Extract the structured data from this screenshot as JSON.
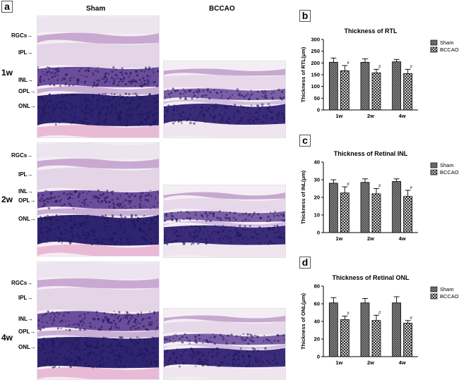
{
  "panels": {
    "a": "a",
    "b": "b",
    "c": "c",
    "d": "d"
  },
  "columns": [
    "Sham",
    "BCCAO"
  ],
  "timepoints": [
    "1w",
    "2w",
    "4w"
  ],
  "layer_labels": {
    "row1": [
      "RGCs",
      "IPL",
      "INL",
      "OPL",
      "ONL"
    ],
    "row2": [
      "RGCs",
      "IPL",
      "INL",
      "OPL",
      "ONL"
    ],
    "row3": [
      "RGCs",
      "IPL",
      "INL",
      "OPL",
      "ONL"
    ]
  },
  "colors": {
    "sham_fill": "#7a7a7a",
    "bccao_fill": "#ffffff",
    "stain_purple": "#3b2a7c",
    "stain_pink": "#e8b9d6"
  },
  "chart_data": [
    {
      "type": "bar",
      "title": "Thickness of RTL",
      "ylabel": "Thickness of RTL(μm)",
      "ylim": [
        0,
        300
      ],
      "yticks": [
        0,
        50,
        100,
        150,
        200,
        250,
        300
      ],
      "categories": [
        "1w",
        "2w",
        "4w"
      ],
      "series": [
        {
          "name": "Sham",
          "values": [
            203,
            203,
            205
          ],
          "errors": [
            18,
            15,
            10
          ]
        },
        {
          "name": "BCCAO",
          "values": [
            167,
            158,
            155
          ],
          "errors": [
            22,
            15,
            18
          ]
        }
      ],
      "significance": [
        "#",
        "#",
        "#"
      ],
      "legend": "right"
    },
    {
      "type": "bar",
      "title": "Thickness of Retinal INL",
      "ylabel": "Thickness of INL(μm)",
      "ylim": [
        0,
        40
      ],
      "yticks": [
        0,
        10,
        20,
        30,
        40
      ],
      "categories": [
        "1w",
        "2w",
        "4w"
      ],
      "series": [
        {
          "name": "Sham",
          "values": [
            28,
            28.5,
            29
          ],
          "errors": [
            2,
            2,
            1.5
          ]
        },
        {
          "name": "BCCAO",
          "values": [
            22.5,
            22,
            20.5
          ],
          "errors": [
            3.5,
            3,
            3.5
          ]
        }
      ],
      "significance": [
        "#",
        "#",
        "#"
      ],
      "legend": "right"
    },
    {
      "type": "bar",
      "title": "Thickness of Retinal ONL",
      "ylabel": "Thickness of ONL(μm)",
      "ylim": [
        0,
        80
      ],
      "yticks": [
        0,
        20,
        40,
        60,
        80
      ],
      "categories": [
        "1w",
        "2w",
        "4w"
      ],
      "series": [
        {
          "name": "Sham",
          "values": [
            61,
            61,
            61
          ],
          "errors": [
            6,
            5,
            7
          ]
        },
        {
          "name": "BCCAO",
          "values": [
            42,
            41,
            38
          ],
          "errors": [
            4,
            6,
            3
          ]
        }
      ],
      "significance": [
        "#",
        "#",
        "#"
      ],
      "legend": "right"
    }
  ]
}
